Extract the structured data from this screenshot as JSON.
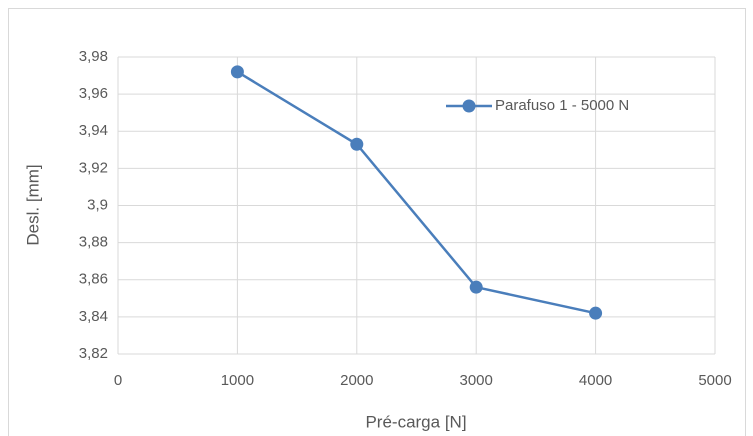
{
  "chart_data": {
    "type": "line",
    "x": [
      1000,
      2000,
      3000,
      4000
    ],
    "series": [
      {
        "name": "Parafuso 1 - 5000 N",
        "color": "#4a7ebb",
        "values": [
          3.972,
          3.933,
          3.856,
          3.842
        ]
      }
    ],
    "xlabel": "Pré-carga [N]",
    "ylabel": "Desl. [mm]",
    "xlim": [
      0,
      5000
    ],
    "xticks": [
      0,
      1000,
      2000,
      3000,
      4000,
      5000
    ],
    "ylim": [
      3.82,
      3.98
    ],
    "yticks": [
      {
        "value": 3.82,
        "label": "3,82"
      },
      {
        "value": 3.84,
        "label": "3,84"
      },
      {
        "value": 3.86,
        "label": "3,86"
      },
      {
        "value": 3.88,
        "label": "3,88"
      },
      {
        "value": 3.9,
        "label": "3,9"
      },
      {
        "value": 3.92,
        "label": "3,92"
      },
      {
        "value": 3.94,
        "label": "3,94"
      },
      {
        "value": 3.96,
        "label": "3,96"
      },
      {
        "value": 3.98,
        "label": "3,98"
      }
    ],
    "grid": true,
    "legend": "upper right"
  }
}
